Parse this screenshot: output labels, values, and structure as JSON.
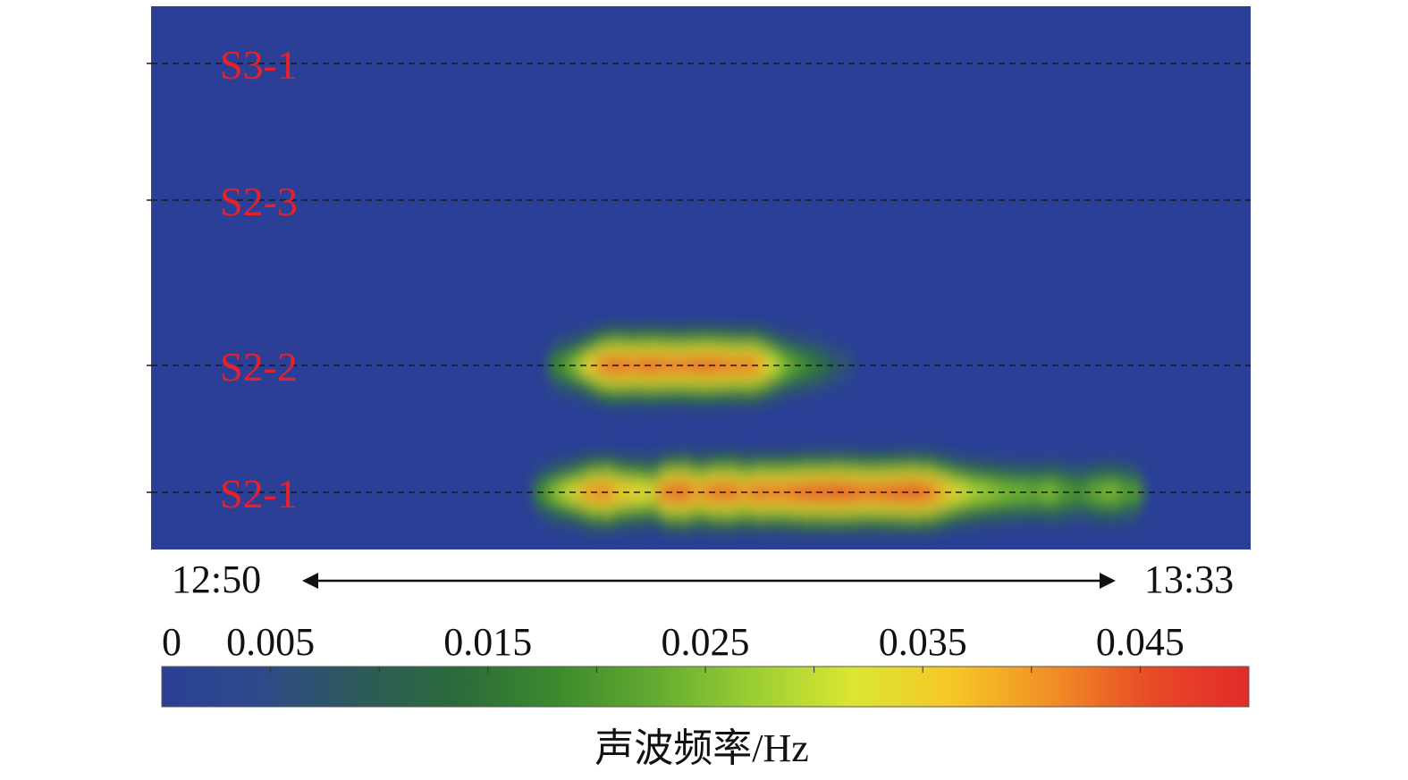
{
  "chart_data": {
    "type": "heatmap",
    "x_axis": {
      "start_label": "12:50",
      "end_label": "13:33"
    },
    "rows": [
      {
        "label": "S3-1"
      },
      {
        "label": "S2-3"
      },
      {
        "label": "S2-2"
      },
      {
        "label": "S2-1"
      }
    ],
    "bands": [
      {
        "row": "S2-2",
        "description": "activity burst",
        "x_range_fraction": [
          0.37,
          0.63
        ],
        "intensity": [
          0.018,
          0.022,
          0.028,
          0.036,
          0.044,
          0.047,
          0.046,
          0.045,
          0.047,
          0.046,
          0.045,
          0.045,
          0.046,
          0.047,
          0.046,
          0.045,
          0.044,
          0.045,
          0.04,
          0.032,
          0.026,
          0.022,
          0.019,
          0.016,
          0.012,
          0.008
        ]
      },
      {
        "row": "S2-1",
        "description": "activity burst",
        "x_range_fraction": [
          0.36,
          0.89
        ],
        "intensity": [
          0.02,
          0.028,
          0.034,
          0.042,
          0.044,
          0.038,
          0.036,
          0.034,
          0.046,
          0.048,
          0.042,
          0.046,
          0.047,
          0.043,
          0.046,
          0.045,
          0.046,
          0.048,
          0.048,
          0.049,
          0.048,
          0.046,
          0.047,
          0.048,
          0.049,
          0.047,
          0.04,
          0.034,
          0.03,
          0.028,
          0.026,
          0.025,
          0.024,
          0.026,
          0.022,
          0.02,
          0.024,
          0.026,
          0.022
        ]
      }
    ],
    "colorbar": {
      "range": [
        0,
        0.05
      ],
      "tick_labels": [
        "0",
        "0.005",
        "0.015",
        "0.025",
        "0.035",
        "0.045"
      ],
      "tick_values": [
        0,
        0.005,
        0.015,
        0.025,
        0.035,
        0.045
      ],
      "label": "声波频率/Hz",
      "colors": [
        "#2b3f96",
        "#2e4a8a",
        "#2d5a5a",
        "#2a6b3a",
        "#3d8a2e",
        "#63ab30",
        "#9ccf33",
        "#dbe631",
        "#f6c728",
        "#f08f25",
        "#e84a27",
        "#e22a2a"
      ]
    },
    "background_color": "#2b3f96",
    "row_label_color": "#e8202a"
  }
}
